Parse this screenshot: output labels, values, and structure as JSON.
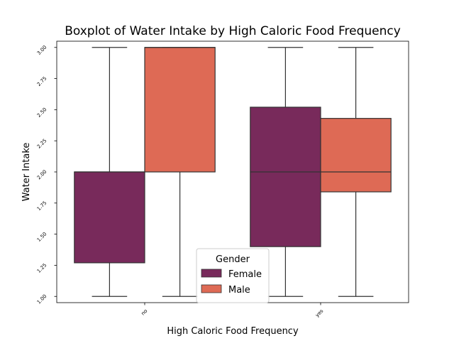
{
  "chart_data": {
    "type": "boxplot",
    "title": "Boxplot of Water Intake by High Caloric Food Frequency",
    "xlabel": "High Caloric Food Frequency",
    "ylabel": "Water Intake",
    "categories": [
      "no",
      "yes"
    ],
    "ylim": [
      0.95,
      3.05
    ],
    "yticks": [
      "1.00",
      "1.25",
      "1.50",
      "1.75",
      "2.00",
      "2.25",
      "2.50",
      "2.75",
      "3.00"
    ],
    "grid": false,
    "legend": {
      "title": "Gender",
      "placement": "bottom-center"
    },
    "series": [
      {
        "name": "Female",
        "color": "#782a5b",
        "boxes": [
          {
            "category": "no",
            "whislo": 1.0,
            "q1": 1.27,
            "med": 2.0,
            "q3": 2.0,
            "whishi": 3.0
          },
          {
            "category": "yes",
            "whislo": 1.0,
            "q1": 1.4,
            "med": 2.0,
            "q3": 2.52,
            "whishi": 3.0
          }
        ]
      },
      {
        "name": "Male",
        "color": "#de6a55",
        "boxes": [
          {
            "category": "no",
            "whislo": 1.0,
            "q1": 2.0,
            "med": 3.0,
            "q3": 3.0,
            "whishi": 3.0
          },
          {
            "category": "yes",
            "whislo": 1.0,
            "q1": 1.84,
            "med": 2.0,
            "q3": 2.43,
            "whishi": 3.0
          }
        ]
      }
    ]
  }
}
